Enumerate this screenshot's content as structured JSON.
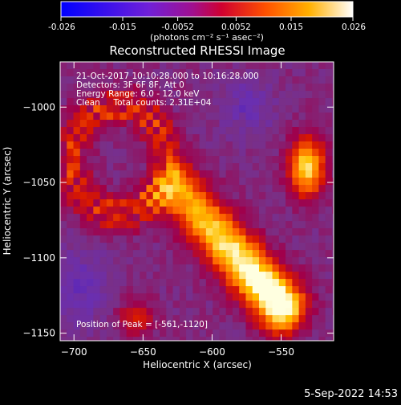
{
  "colorbar": {
    "tick_labels": [
      "-0.026",
      "-0.015",
      "-0.0052",
      "0.0052",
      "0.015",
      "0.026"
    ],
    "tick_values": [
      -0.026,
      -0.015,
      -0.0052,
      0.0052,
      0.015,
      0.026
    ],
    "range": [
      -0.026,
      0.026
    ],
    "units_label": "(photons cm⁻² s⁻¹ asec⁻²)"
  },
  "chart_data": {
    "type": "heatmap",
    "title": "Reconstructed RHESSI Image",
    "xlabel": "Heliocentric X (arcsec)",
    "ylabel": "Heliocentric Y (arcsec)",
    "xlim": [
      -710,
      -512
    ],
    "ylim": [
      -1155,
      -970
    ],
    "x_ticks": [
      -700,
      -650,
      -600,
      -550
    ],
    "y_ticks": [
      -1000,
      -1050,
      -1100,
      -1150
    ],
    "x_tick_labels": [
      "−700",
      "−650",
      "−600",
      "−550"
    ],
    "y_tick_labels": [
      "−1000",
      "−1050",
      "−1100",
      "−1150"
    ],
    "colormap": [
      "#1a00d8",
      "#6a2fb0",
      "#7a2f85",
      "#a0004a",
      "#d81800",
      "#ff6a00",
      "#ffc000",
      "#ffffe0"
    ],
    "annotations": [
      "21-Oct-2017 10:10:28.000 to 10:16:28.000",
      "Detectors: 3F 6F 8F, Att 0",
      "Energy Range: 6.0 - 12.0 keV",
      "Clean     Total counts: 2.31E+04"
    ],
    "peak_label": "Position of Peak = [-561,-1120]",
    "peak": [
      -561,
      -1120
    ],
    "features": [
      {
        "kind": "main_ridge",
        "from": [
          -625,
          -1055
        ],
        "to": [
          -550,
          -1132
        ],
        "peak_value": 0.026
      },
      {
        "kind": "blob",
        "center": [
          -531,
          -1040
        ],
        "peak_value": 0.02
      },
      {
        "kind": "ring",
        "center": [
          -668,
          -1035
        ],
        "radius": 35,
        "peak_value": 0.012
      },
      {
        "kind": "blob",
        "center": [
          -655,
          -1140
        ],
        "peak_value": 0.008
      }
    ]
  },
  "timestamp": "5-Sep-2022 14:53"
}
